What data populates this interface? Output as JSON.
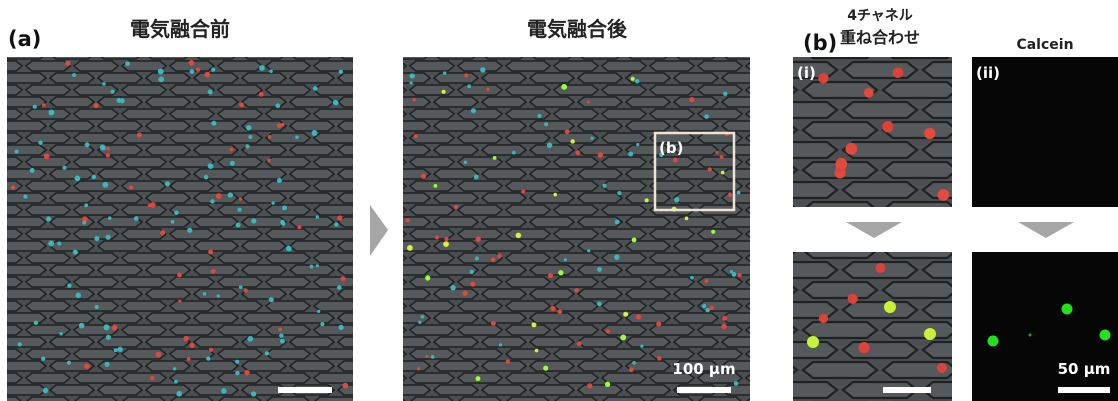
{
  "panel_a": {
    "label": "(a)",
    "before_title": "電気融合前",
    "after_title": "電気融合後",
    "inset_label": "(b)",
    "scale_bar": "100 µm"
  },
  "panel_b": {
    "label": "(b)",
    "overlay_title_line1": "4チャネル",
    "overlay_title_line2": "重ね合わせ",
    "calcein_title": "Calcein",
    "sub_i": "(i)",
    "sub_ii": "(ii)",
    "scale_bar": "50 µm"
  }
}
